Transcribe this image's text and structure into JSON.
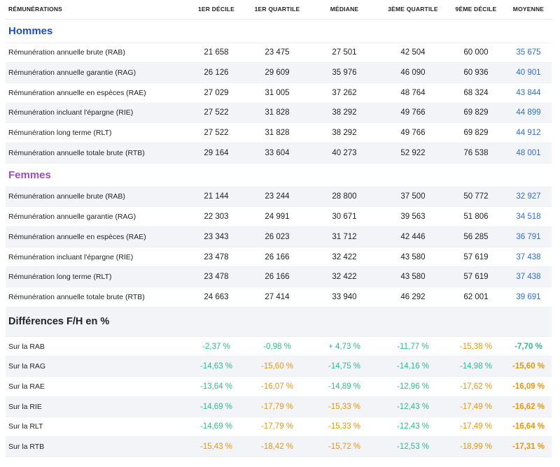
{
  "headers": [
    "RÉMUNÉRATIONS",
    "1ER DÉCILE",
    "1ER QUARTILE",
    "MÉDIANE",
    "3ÈME QUARTILE",
    "9ÈME DÉCILE",
    "MOYENNE"
  ],
  "hommes": {
    "title": "Hommes",
    "rows": [
      {
        "label": "Rémunération annuelle brute (RAB)",
        "values": [
          "21 658",
          "23 475",
          "27 501",
          "42 504",
          "60 000",
          "35 675"
        ]
      },
      {
        "label": "Rémunération annuelle garantie (RAG)",
        "values": [
          "26 126",
          "29 609",
          "35 976",
          "46 090",
          "60 936",
          "40 901"
        ]
      },
      {
        "label": "Rémunération annuelle en espèces (RAE)",
        "values": [
          "27 029",
          "31 005",
          "37 262",
          "48 764",
          "68 324",
          "43 844"
        ]
      },
      {
        "label": "Rémunération incluant l'épargne (RIE)",
        "values": [
          "27 522",
          "31 828",
          "38 292",
          "49 766",
          "69 829",
          "44 899"
        ]
      },
      {
        "label": "Rémunération long terme (RLT)",
        "values": [
          "27 522",
          "31 828",
          "38 292",
          "49 766",
          "69 829",
          "44 912"
        ]
      },
      {
        "label": "Rémunération annuelle totale brute (RTB)",
        "values": [
          "29 164",
          "33 604",
          "40 273",
          "52 922",
          "76 538",
          "48 001"
        ]
      }
    ]
  },
  "femmes": {
    "title": "Femmes",
    "rows": [
      {
        "label": "Rémunération annuelle brute (RAB)",
        "values": [
          "21 144",
          "23 244",
          "28 800",
          "37 500",
          "50 772",
          "32 927"
        ]
      },
      {
        "label": "Rémunération annuelle garantie (RAG)",
        "values": [
          "22 303",
          "24 991",
          "30 671",
          "39 563",
          "51 806",
          "34 518"
        ]
      },
      {
        "label": "Rémunération annuelle en espèces (RAE)",
        "values": [
          "23 343",
          "26 023",
          "31 712",
          "42 446",
          "56 285",
          "36 791"
        ]
      },
      {
        "label": "Rémunération incluant l'épargne (RIE)",
        "values": [
          "23 478",
          "26 166",
          "32 422",
          "43 580",
          "57 619",
          "37 438"
        ]
      },
      {
        "label": "Rémunération long terme (RLT)",
        "values": [
          "23 478",
          "26 166",
          "32 422",
          "43 580",
          "57 619",
          "37 438"
        ]
      },
      {
        "label": "Rémunération annuelle totale brute (RTB)",
        "values": [
          "24 663",
          "27 414",
          "33 940",
          "46 292",
          "62 001",
          "39 691"
        ]
      }
    ]
  },
  "differences": {
    "title": "Différences F/H en %",
    "colors": {
      "green": "#2ebd86",
      "orange": "#e8960f"
    },
    "rows": [
      {
        "label": "Sur la RAB",
        "values": [
          "-2,37 %",
          "-0,98 %",
          "+ 4,73 %",
          "-11,77 %",
          "-15,38 %",
          "-7,70 %"
        ],
        "tones": [
          "green",
          "green",
          "green",
          "green",
          "orange",
          "green"
        ]
      },
      {
        "label": "Sur la RAG",
        "values": [
          "-14,63 %",
          "-15,60 %",
          "-14,75 %",
          "-14,16 %",
          "-14,98 %",
          "-15,60 %"
        ],
        "tones": [
          "green",
          "orange",
          "green",
          "green",
          "green",
          "orange"
        ]
      },
      {
        "label": "Sur la RAE",
        "values": [
          "-13,64 %",
          "-16,07 %",
          "-14,89 %",
          "-12,96 %",
          "-17,62 %",
          "-16,09 %"
        ],
        "tones": [
          "green",
          "orange",
          "green",
          "green",
          "orange",
          "orange"
        ]
      },
      {
        "label": "Sur la RIE",
        "values": [
          "-14,69 %",
          "-17,79 %",
          "-15,33 %",
          "-12,43 %",
          "-17,49 %",
          "-16,62 %"
        ],
        "tones": [
          "green",
          "orange",
          "orange",
          "green",
          "orange",
          "orange"
        ]
      },
      {
        "label": "Sur la RLT",
        "values": [
          "-14,69 %",
          "-17,79 %",
          "-15,33 %",
          "-12,43 %",
          "-17,49 %",
          "-16,64 %"
        ],
        "tones": [
          "green",
          "orange",
          "orange",
          "green",
          "orange",
          "orange"
        ]
      },
      {
        "label": "Sur la RTB",
        "values": [
          "-15,43 %",
          "-18,42 %",
          "-15,72 %",
          "-12,53 %",
          "-18,99 %",
          "-17,31 %"
        ],
        "tones": [
          "orange",
          "orange",
          "orange",
          "green",
          "orange",
          "orange"
        ]
      }
    ]
  }
}
